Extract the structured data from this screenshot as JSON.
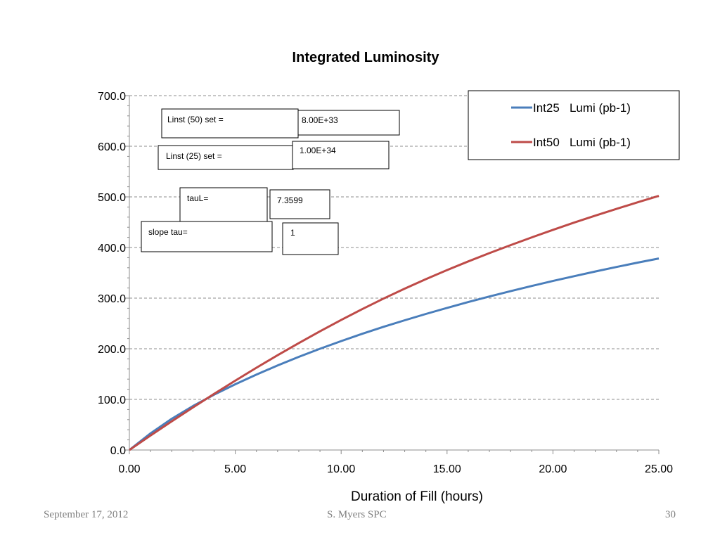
{
  "chart_data": {
    "type": "line",
    "title": "Integrated Luminosity",
    "xlabel": "Duration of Fill (hours)",
    "ylabel": "",
    "xlim": [
      0,
      25
    ],
    "ylim": [
      0,
      700
    ],
    "x_ticks": [
      "0.00",
      "5.00",
      "10.00",
      "15.00",
      "20.00",
      "25.00"
    ],
    "y_ticks": [
      "0.0",
      "100.0",
      "200.0",
      "300.0",
      "400.0",
      "500.0",
      "600.0",
      "700.0"
    ],
    "grid": "horizontal dashed",
    "legend_position": "top-right",
    "x": [
      0,
      1,
      2,
      3,
      4,
      5,
      6,
      7,
      8,
      9,
      10,
      11,
      12,
      13,
      14,
      15,
      16,
      17,
      18,
      19,
      20,
      21,
      22,
      23,
      24,
      25
    ],
    "series": [
      {
        "name": "Int25   Lumi (pb-1)",
        "color": "#4a7ebb",
        "values": [
          0,
          32.9,
          61.6,
          86.8,
          109.3,
          129.9,
          149.0,
          167.0,
          184.0,
          200.0,
          215.2,
          229.6,
          243.3,
          256.3,
          268.8,
          280.7,
          292.2,
          303.2,
          313.8,
          324.0,
          333.9,
          343.4,
          352.6,
          361.5,
          370.1,
          378.4
        ]
      },
      {
        "name": "Int50   Lumi (pb-1)",
        "color": "#be4b48",
        "values": [
          0,
          28.6,
          56.6,
          84.0,
          110.8,
          137.0,
          162.5,
          187.2,
          211.2,
          234.5,
          256.8,
          278.4,
          299.0,
          318.7,
          337.5,
          355.4,
          372.5,
          388.9,
          404.7,
          420.0,
          434.8,
          449.1,
          462.9,
          476.3,
          489.3,
          501.9
        ]
      }
    ],
    "annotations": [
      {
        "label": "Linst (50) set =",
        "value": "8.00E+33"
      },
      {
        "label": "Linst (25) set =",
        "value": "1.00E+34"
      },
      {
        "label": "tauL=",
        "value": "7.3599"
      },
      {
        "label": "slope tau=",
        "value": "1"
      }
    ]
  },
  "footer": {
    "date": "September 17, 2012",
    "author": "S. Myers SPC",
    "page": "30"
  }
}
